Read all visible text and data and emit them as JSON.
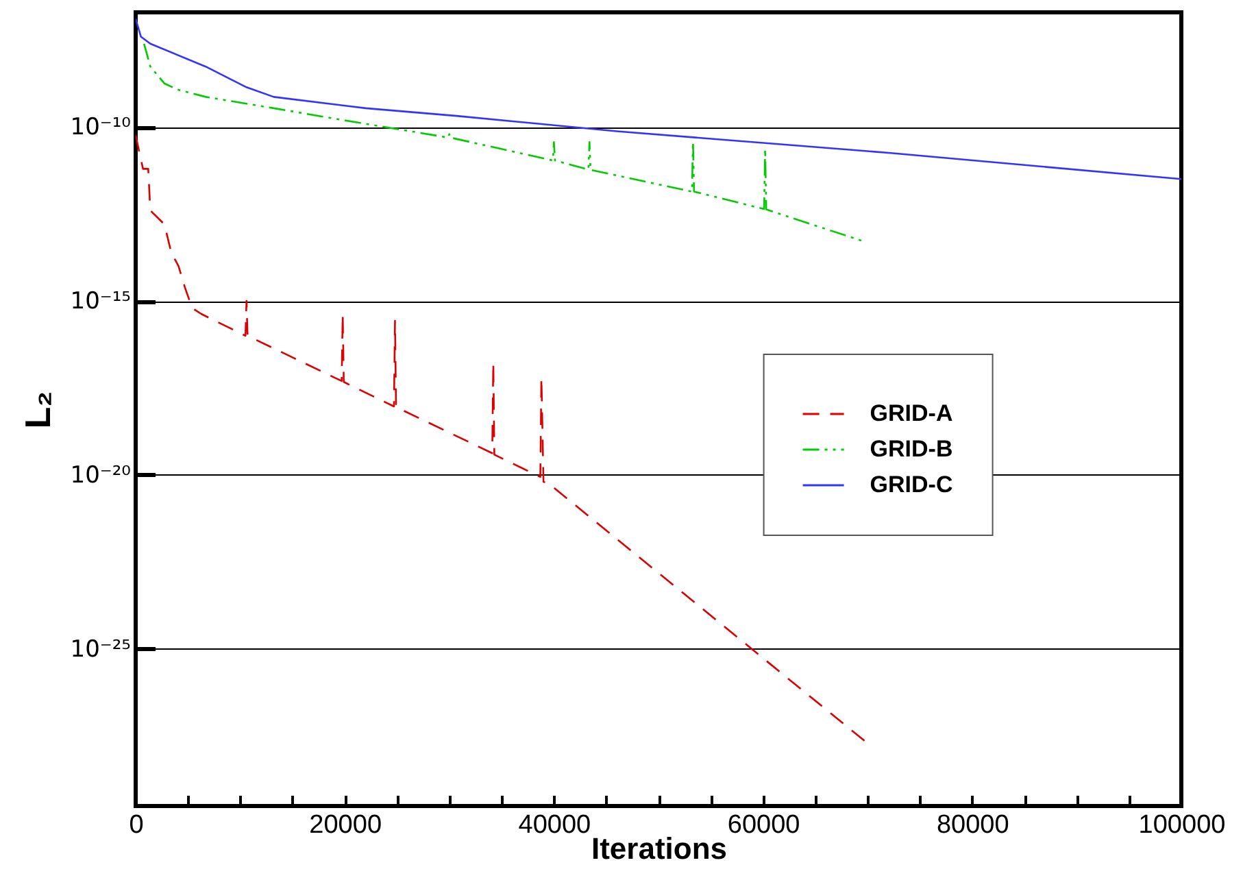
{
  "chart_data": {
    "type": "line",
    "xlabel": "Iterations",
    "ylabel": "L₂",
    "xlim": [
      0,
      100000
    ],
    "ylim": [
      3e-30,
      2e-07
    ],
    "log": "y",
    "grid": "y",
    "legend": "right",
    "marker": "none",
    "xticks": [
      0,
      {
        "value": 5000,
        "label": null
      },
      {
        "value": 10000,
        "label": null
      },
      {
        "value": 15000,
        "label": null
      },
      20000,
      {
        "value": 25000,
        "label": null
      },
      {
        "value": 30000,
        "label": null
      },
      {
        "value": 35000,
        "label": null
      },
      40000,
      {
        "value": 45000,
        "label": null
      },
      {
        "value": 50000,
        "label": null
      },
      {
        "value": 55000,
        "label": null
      },
      60000,
      {
        "value": 65000,
        "label": null
      },
      {
        "value": 70000,
        "label": null
      },
      {
        "value": 75000,
        "label": null
      },
      80000,
      {
        "value": 85000,
        "label": null
      },
      {
        "value": 90000,
        "label": null
      },
      {
        "value": 95000,
        "label": null
      },
      100000
    ],
    "yticks": [
      {
        "value": 1e-10,
        "label": "10⁻¹⁰"
      },
      {
        "value": 1e-15,
        "label": "10⁻¹⁵"
      },
      {
        "value": 1e-20,
        "label": "10⁻²⁰"
      },
      {
        "value": 1e-25,
        "label": "10⁻²⁵"
      }
    ],
    "series": [
      {
        "name": "GRID-A",
        "color": "#dd0000",
        "line_style": "dashed",
        "x": [
          0,
          700,
          1200,
          1400,
          2100,
          2750,
          3400,
          4100,
          4700,
          5400,
          6300,
          10500,
          10600,
          10700,
          19700,
          19800,
          19900,
          24700,
          24800,
          24900,
          34100,
          34200,
          34300,
          38700,
          38800,
          39000,
          39450,
          70000
        ],
        "values": [
          5.8e-11,
          6.3e-12,
          6.3e-12,
          4e-13,
          2.5e-13,
          1.6e-13,
          2.5e-14,
          1e-14,
          2.5e-15,
          6.3e-16,
          4.2e-16,
          1e-16,
          1e-15,
          1e-16,
          5e-18,
          4.2e-16,
          4.7e-18,
          9.3e-19,
          2.7e-16,
          8.9e-19,
          4.2e-20,
          1.7e-17,
          3.8e-20,
          8.7e-21,
          6.3e-18,
          6.3e-21,
          5.8e-21,
          1.9e-28
        ]
      },
      {
        "name": "GRID-B",
        "color": "#00cc00",
        "line_style": "dashdot",
        "x": [
          800,
          1400,
          2750,
          4000,
          6700,
          13200,
          19800,
          26300,
          29900,
          30000,
          30100,
          39900,
          40000,
          40100,
          43300,
          43400,
          43500,
          53200,
          53300,
          53400,
          60100,
          60200,
          60300,
          69600
        ],
        "values": [
          2.5e-08,
          5.5e-09,
          1.8e-09,
          1.2e-09,
          7.4e-10,
          3.5e-10,
          1.6e-10,
          7.6e-11,
          5e-11,
          6.3e-11,
          5e-11,
          1.1e-11,
          3.7e-11,
          1.1e-11,
          6e-12,
          3.7e-11,
          5.9e-12,
          1.4e-12,
          3.7e-11,
          1.4e-12,
          4.4e-13,
          2.3e-11,
          4.3e-13,
          5.2e-14
        ]
      },
      {
        "name": "GRID-C",
        "color": "#3333ff",
        "line_style": "solid",
        "x": [
          0,
          500,
          1400,
          6700,
          10600,
          13200,
          22000,
          30700,
          46000,
          72200,
          100000
        ],
        "values": [
          1.3e-07,
          4e-08,
          2.5e-08,
          5.5e-09,
          1.4e-09,
          7.4e-10,
          3.5e-10,
          2.1e-10,
          7.6e-11,
          1.8e-11,
          3.2e-12
        ]
      }
    ]
  }
}
